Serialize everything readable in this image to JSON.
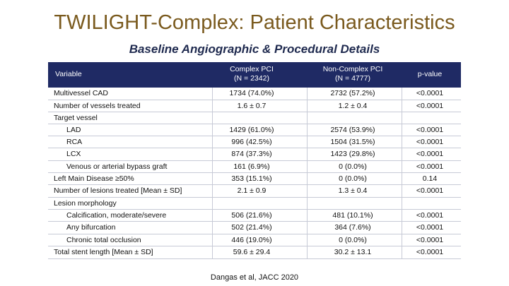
{
  "title": "TWILIGHT-Complex: Patient Characteristics",
  "subtitle": "Baseline Angiographic & Procedural Details",
  "header": {
    "variable": "Variable",
    "col1_line1": "Complex PCI",
    "col1_line2": "(N = 2342)",
    "col2_line1": "Non-Complex PCI",
    "col2_line2": "(N = 4777)",
    "col3": "p-value"
  },
  "rows": [
    {
      "label": "Multivessel CAD",
      "c1": "1734 (74.0%)",
      "c2": "2732 (57.2%)",
      "p": "<0.0001"
    },
    {
      "label": "Number of vessels treated",
      "c1": "1.6 ± 0.7",
      "c2": "1.2 ± 0.4",
      "p": "<0.0001"
    },
    {
      "label": "Target vessel",
      "c1": "",
      "c2": "",
      "p": ""
    },
    {
      "label": "LAD",
      "c1": "1429 (61.0%)",
      "c2": "2574 (53.9%)",
      "p": "<0.0001"
    },
    {
      "label": "RCA",
      "c1": "996 (42.5%)",
      "c2": "1504 (31.5%)",
      "p": "<0.0001"
    },
    {
      "label": "LCX",
      "c1": "874 (37.3%)",
      "c2": "1423 (29.8%)",
      "p": "<0.0001"
    },
    {
      "label": "Venous or arterial bypass graft",
      "c1": "161 (6.9%)",
      "c2": "0 (0.0%)",
      "p": "<0.0001"
    },
    {
      "label": "Left Main Disease ≥50%",
      "c1": "353 (15.1%)",
      "c2": "0 (0.0%)",
      "p": "0.14"
    },
    {
      "label": "Number of lesions treated [Mean ± SD]",
      "c1": "2.1 ± 0.9",
      "c2": "1.3 ± 0.4",
      "p": "<0.0001"
    },
    {
      "label": "Lesion morphology",
      "c1": "",
      "c2": "",
      "p": ""
    },
    {
      "label": "Calcification, moderate/severe",
      "c1": "506 (21.6%)",
      "c2": "481 (10.1%)",
      "p": "<0.0001"
    },
    {
      "label": "Any bifurcation",
      "c1": "502 (21.4%)",
      "c2": "364 (7.6%)",
      "p": "<0.0001"
    },
    {
      "label": "Chronic total occlusion",
      "c1": "446 (19.0%)",
      "c2": "0 (0.0%)",
      "p": "<0.0001"
    },
    {
      "label": "Total stent length [Mean ± SD]",
      "c1": "59.6 ± 29.4",
      "c2": "30.2 ± 13.1",
      "p": "<0.0001"
    }
  ],
  "citation": "Dangas et al, JACC 2020"
}
